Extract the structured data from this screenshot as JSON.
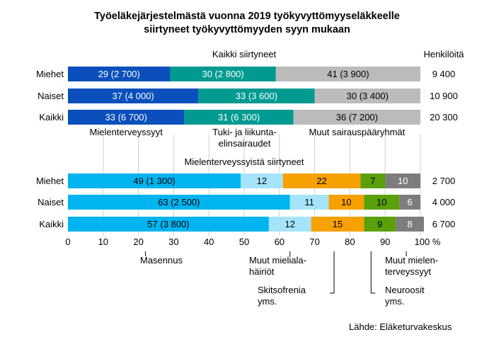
{
  "title_line1": "Työeläkejärjestelmästä vuonna 2019 työkyvyttömyyseläkkeelle",
  "title_line2": "siirtyneet työkyvyttömyyden syyn mukaan",
  "source": "Lähde: Eläketurvakeskus",
  "chart_data": [
    {
      "type": "bar",
      "orientation": "horizontal",
      "stacked": true,
      "subtitle": "Kaikki siirtyneet",
      "count_header": "Henkilöitä",
      "categories": [
        "Miehet",
        "Naiset",
        "Kaikki"
      ],
      "counts": [
        "9 400",
        "10 900",
        "20 300"
      ],
      "series": [
        {
          "name": "Mielenterveyssyyt",
          "color": "#0a4fbb",
          "text_color": "#ffffff",
          "values": [
            29,
            37,
            33
          ],
          "labels": [
            "29 (2 700)",
            "37 (4 000)",
            "33 (6 700)"
          ]
        },
        {
          "name": "Tuki- ja liikunta-elinsairaudet",
          "color": "#009a91",
          "text_color": "#ffffff",
          "values": [
            30,
            33,
            31
          ],
          "labels": [
            "30 (2 800)",
            "33 (3 600)",
            "31 (6 300)"
          ]
        },
        {
          "name": "Muut sairauspääryhmät",
          "color": "#bbbbbb",
          "text_color": "#000000",
          "values": [
            41,
            30,
            36
          ],
          "labels": [
            "41 (3 900)",
            "30 (3 400)",
            "36 (7 200)"
          ]
        }
      ],
      "legend_labels": [
        {
          "lines": [
            "Mielenterveyssyyt"
          ]
        },
        {
          "lines": [
            "Tuki- ja liikunta-",
            "elinsairaudet"
          ]
        },
        {
          "lines": [
            "Muut sairauspääryhmät"
          ]
        }
      ]
    },
    {
      "type": "bar",
      "orientation": "horizontal",
      "stacked": true,
      "subtitle": "Mielenterveyssyistä siirtyneet",
      "categories": [
        "Miehet",
        "Naiset",
        "Kaikki"
      ],
      "counts": [
        "2 700",
        "4 000",
        "6 700"
      ],
      "series": [
        {
          "name": "Masennus",
          "color": "#00b4f0",
          "text_color": "#000000",
          "values": [
            49,
            63,
            57
          ],
          "labels": [
            "49 (1 300)",
            "63 (2 500)",
            "57 (3 800)"
          ]
        },
        {
          "name": "Muut mieliala-häiriöt",
          "color": "#a6e4fb",
          "text_color": "#000000",
          "values": [
            12,
            11,
            12
          ],
          "labels": [
            "12",
            "11",
            "12"
          ]
        },
        {
          "name": "Skitsofrenia yms.",
          "color": "#f7a100",
          "text_color": "#000000",
          "values": [
            22,
            10,
            15
          ],
          "labels": [
            "22",
            "10",
            "15"
          ]
        },
        {
          "name": "Neuroosit yms.",
          "color": "#5aa00a",
          "text_color": "#000000",
          "values": [
            7,
            10,
            9
          ],
          "labels": [
            "7",
            "10",
            "9"
          ]
        },
        {
          "name": "Muut mielen-terveyssyyt",
          "color": "#7d7d7d",
          "text_color": "#ffffff",
          "values": [
            10,
            6,
            8
          ],
          "labels": [
            "10",
            "6",
            "8"
          ]
        }
      ],
      "xlim": [
        0,
        100
      ],
      "xticks": [
        "0",
        "10",
        "20",
        "30",
        "40",
        "50",
        "60",
        "70",
        "80",
        "90",
        "100 %"
      ],
      "grid": true,
      "callouts": [
        {
          "lines": [
            "Masennus"
          ],
          "target": 22
        },
        {
          "lines": [
            "Muut mieliala-",
            "häiriöt"
          ],
          "target": 63
        },
        {
          "lines": [
            "Skitsofrenia",
            "yms."
          ],
          "target": 75.5
        },
        {
          "lines": [
            "Neuroosit",
            "yms."
          ],
          "target": 86
        },
        {
          "lines": [
            "Muut mielen-",
            "terveyssyyt"
          ],
          "target": 96
        }
      ]
    }
  ]
}
